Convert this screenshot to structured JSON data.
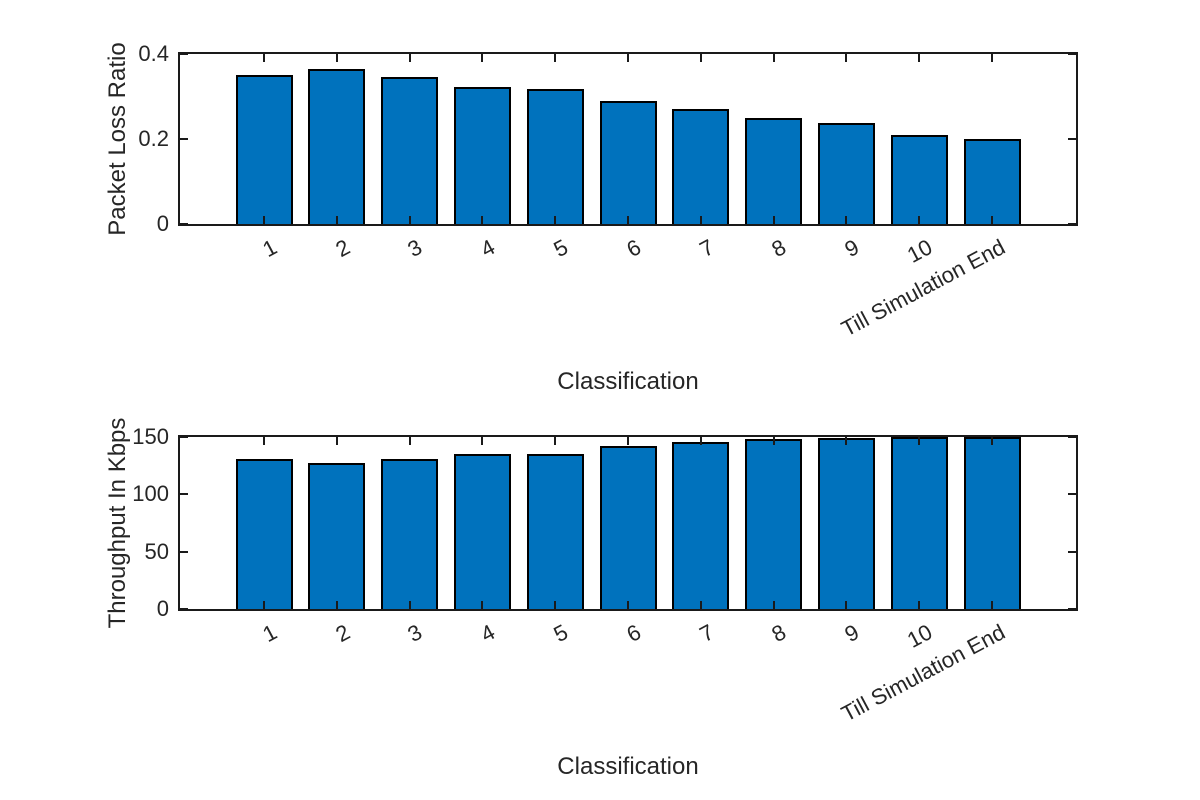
{
  "figure": {
    "background": "#ffffff"
  },
  "chart_data": [
    {
      "type": "bar",
      "title": "",
      "categories": [
        "1",
        "2",
        "3",
        "4",
        "5",
        "6",
        "7",
        "8",
        "9",
        "10",
        "Till Simulation End"
      ],
      "values": [
        0.35,
        0.365,
        0.345,
        0.322,
        0.318,
        0.29,
        0.27,
        0.25,
        0.237,
        0.21,
        0.2
      ],
      "xlabel": "Classification",
      "ylabel": "Packet Loss Ratio",
      "ylim": [
        0,
        0.4
      ],
      "yticks": [
        0,
        0.2,
        0.4
      ],
      "ytick_labels": [
        "0",
        "0.2",
        "0.4"
      ],
      "xtick_rotation_deg": 28,
      "grid": false,
      "legend": null,
      "bar_color": "#0072BD",
      "bar_edge_color": "#000000",
      "axis_color": "#1a1a1a",
      "text_color": "#262626"
    },
    {
      "type": "bar",
      "title": "",
      "categories": [
        "1",
        "2",
        "3",
        "4",
        "5",
        "6",
        "7",
        "8",
        "9",
        "10",
        "Till Simulation End"
      ],
      "values": [
        131,
        127,
        131,
        135,
        135,
        142,
        146,
        148,
        149,
        150,
        150
      ],
      "xlabel": "Classification",
      "ylabel": "Throughput In Kbps",
      "ylim": [
        0,
        150
      ],
      "yticks": [
        0,
        50,
        100,
        150
      ],
      "ytick_labels": [
        "0",
        "50",
        "100",
        "150"
      ],
      "xtick_rotation_deg": 28,
      "grid": false,
      "legend": null,
      "bar_color": "#0072BD",
      "bar_edge_color": "#000000",
      "axis_color": "#1a1a1a",
      "text_color": "#262626"
    }
  ]
}
